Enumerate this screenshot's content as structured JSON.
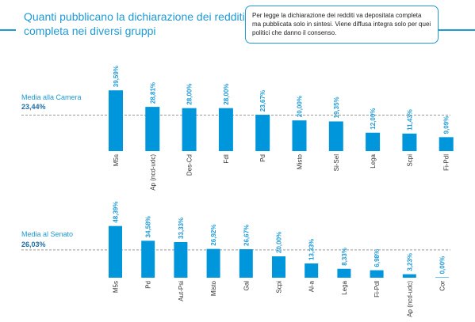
{
  "title": "Quanti pubblicano la dichiarazione dei redditi completa nei diversi gruppi",
  "note": "Per legge la dichiarazione dei redditi va depositata completa ma pubblicata solo in sintesi. Viene diffusa integra solo per quei politici che danno il consenso.",
  "colors": {
    "bar": "#0096dc",
    "accent": "#1e9ad6",
    "avg_line": "#9a9a9a"
  },
  "chart_data": [
    {
      "type": "bar",
      "average_label": "Media alla Camera",
      "average_value_label": "23,44%",
      "average": 23.44,
      "ylim": [
        0,
        40
      ],
      "categories": [
        "M5s",
        "Ap (ncd-udc)",
        "Des-Cd",
        "FdI",
        "Pd",
        "Misto",
        "Si-Sel",
        "Lega",
        "Scpi",
        "Fi-Pdl"
      ],
      "values": [
        39.59,
        28.81,
        28.0,
        28.0,
        23.67,
        20.0,
        19.35,
        12.0,
        11.43,
        9.09
      ],
      "value_labels": [
        "39,59%",
        "28,81%",
        "28,00%",
        "28,00%",
        "23,67%",
        "20,00%",
        "19,35%",
        "12,00%",
        "11,43%",
        "9,09%"
      ]
    },
    {
      "type": "bar",
      "average_label": "Media al Senato",
      "average_value_label": "26,03%",
      "average": 26.03,
      "ylim": [
        0,
        40
      ],
      "categories": [
        "M5s",
        "Pd",
        "Aut-Psi",
        "Misto",
        "Gal",
        "Scpi",
        "Al-a",
        "Lega",
        "Fi-Pdl",
        "Ap (ncd-udc)",
        "Cor"
      ],
      "values": [
        48.39,
        34.58,
        33.33,
        26.92,
        26.67,
        20.0,
        13.33,
        8.33,
        6.98,
        3.23,
        0.0
      ],
      "value_labels": [
        "48,39%",
        "34,58%",
        "33,33%",
        "26,92%",
        "26,67%",
        "20,00%",
        "13,33%",
        "8,33%",
        "6,98%",
        "3,23%",
        "0,00%"
      ]
    }
  ]
}
